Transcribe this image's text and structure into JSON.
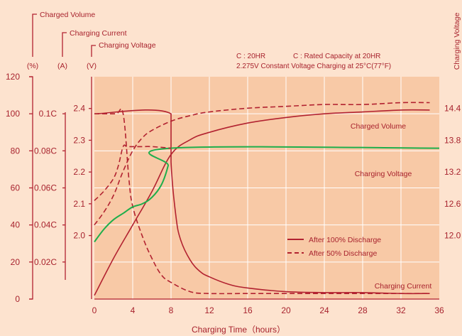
{
  "colors": {
    "background": "#fde3cf",
    "plot_background": "#f8c9a6",
    "grid": "#ffffff",
    "red": "#b22230",
    "green": "#1fae4b",
    "text": "#a8232e"
  },
  "chart_data": {
    "type": "line",
    "xlabel": "Charging Time（hours）",
    "x_ticks": [
      "0",
      "4",
      "8",
      "12",
      "16",
      "20",
      "24",
      "28",
      "32",
      "36"
    ],
    "xlim": [
      0,
      36
    ],
    "axes_headers": {
      "charged_volume": "Charged Volume",
      "charging_current": "Charging Current",
      "charging_voltage": "Charging Voltage",
      "unit_percent": "(%)",
      "unit_ampere": "(A)",
      "unit_volt": "(V)"
    },
    "right_axis_label": "Charging Voltage",
    "left_axis_percent": {
      "ticks": [
        "120",
        "100",
        "80",
        "60",
        "40",
        "20",
        "0"
      ],
      "range": [
        0,
        120
      ]
    },
    "left_axis_current": {
      "ticks": [
        "0.1C",
        "0.08C",
        "0.06C",
        "0.04C",
        "0.02C"
      ],
      "range": [
        0,
        0.12
      ]
    },
    "left_axis_cell_voltage": {
      "ticks": [
        "2.4",
        "2.3",
        "2.2",
        "2.1",
        "2.0"
      ],
      "range": [
        1.8,
        2.5
      ]
    },
    "right_axis_voltage": {
      "ticks": [
        "14.4",
        "13.8",
        "13.2",
        "12.6",
        "12.0"
      ],
      "range": [
        10.8,
        15.0
      ]
    },
    "notes": {
      "line1_a": "C : 20HR",
      "line1_b": "C : Rated Capacity at 20HR",
      "line2": "2.275V Constant Voltage Charging at 25°C(77°F)"
    },
    "series_labels": {
      "charged_volume": "Charged Volume",
      "charging_voltage": "Charging Voltage",
      "charging_current": "Charging Current"
    },
    "legend": {
      "position": "lower-right",
      "solid": "After 100% Discharge",
      "dashed": "After 50% Discharge"
    },
    "series": [
      {
        "legend": "After 100% Discharge",
        "axis": "left_axis_percent",
        "x": [
          0,
          2,
          4,
          6,
          8,
          10,
          12,
          16,
          20,
          24,
          28,
          32,
          35
        ],
        "y": [
          2,
          22,
          40,
          58,
          78,
          86,
          90,
          95,
          98,
          100,
          101,
          102,
          102
        ]
      },
      {
        "legend": "After 50% Discharge",
        "axis": "left_axis_percent",
        "x": [
          0,
          1,
          2,
          3,
          4,
          5,
          6,
          8,
          10,
          12,
          16,
          20,
          24,
          28,
          32,
          35
        ],
        "y": [
          40,
          47,
          56,
          69,
          80,
          87,
          91,
          96,
          99,
          101,
          103,
          104,
          105,
          105,
          106,
          106
        ]
      },
      {
        "legend": "After 100% Discharge",
        "axis": "left_axis_current",
        "x": [
          0,
          8,
          8,
          8.5,
          9,
          10,
          11,
          12,
          14,
          16,
          20,
          24,
          28,
          32,
          35
        ],
        "y": [
          0.1,
          0.1,
          0.074,
          0.045,
          0.032,
          0.021,
          0.015,
          0.012,
          0.008,
          0.006,
          0.004,
          0.0035,
          0.0035,
          0.003,
          0.003
        ]
      },
      {
        "legend": "After 50% Discharge",
        "axis": "left_axis_current",
        "x": [
          0,
          2.2,
          3,
          3.6,
          4,
          5,
          6,
          7,
          8,
          10,
          12,
          16,
          20,
          24,
          28,
          32,
          35
        ],
        "y": [
          0.1,
          0.1,
          0.1,
          0.065,
          0.05,
          0.034,
          0.022,
          0.013,
          0.009,
          0.004,
          0.003,
          0.003,
          0.003,
          0.003,
          0.003,
          0.003,
          0.003
        ]
      },
      {
        "legend": "After 100% Discharge",
        "axis": "left_axis_cell_voltage",
        "x": [
          0,
          1,
          2,
          3,
          4,
          5,
          6,
          7,
          7.7,
          8,
          36
        ],
        "y": [
          1.98,
          2.02,
          2.05,
          2.07,
          2.09,
          2.1,
          2.12,
          2.16,
          2.22,
          2.275,
          2.275
        ]
      },
      {
        "legend": "After 50% Discharge",
        "axis": "left_axis_cell_voltage",
        "x": [
          0,
          1,
          2,
          2.5,
          3,
          3.4,
          4,
          5,
          6,
          8
        ],
        "y": [
          2.11,
          2.14,
          2.18,
          2.22,
          2.28,
          2.28,
          2.28,
          2.28,
          2.28,
          2.275
        ]
      }
    ]
  }
}
